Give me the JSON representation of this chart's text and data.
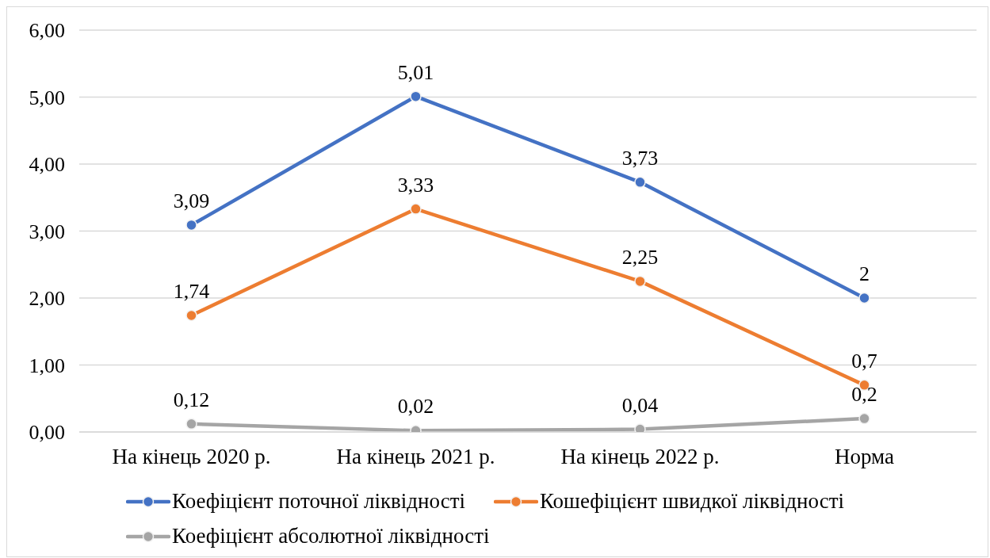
{
  "chart_data": {
    "type": "line",
    "categories": [
      "На кінець 2020 р.",
      "На кінець 2021 р.",
      "На кінець 2022 р.",
      "Норма"
    ],
    "series": [
      {
        "name": "Коефіцієнт поточної ліквідності",
        "color": "#4472c4",
        "values": [
          3.09,
          5.01,
          3.73,
          2
        ],
        "value_labels": [
          "3,09",
          "5,01",
          "3,73",
          "2"
        ]
      },
      {
        "name": "Кошефіцієнт швидкої ліквідності",
        "color": "#ed7d31",
        "values": [
          1.74,
          3.33,
          2.25,
          0.7
        ],
        "value_labels": [
          "1,74",
          "3,33",
          "2,25",
          "0,7"
        ]
      },
      {
        "name": "Коефіцієнт абсолютної ліквідності",
        "color": "#a5a5a5",
        "values": [
          0.12,
          0.02,
          0.04,
          0.2
        ],
        "value_labels": [
          "0,12",
          "0,02",
          "0,04",
          "0,2"
        ]
      }
    ],
    "ylim": [
      0,
      6
    ],
    "yticks": [
      {
        "value": 0,
        "label": "0,00"
      },
      {
        "value": 1,
        "label": "1,00"
      },
      {
        "value": 2,
        "label": "2,00"
      },
      {
        "value": 3,
        "label": "3,00"
      },
      {
        "value": 4,
        "label": "4,00"
      },
      {
        "value": 5,
        "label": "5,00"
      },
      {
        "value": 6,
        "label": "6,00"
      }
    ],
    "grid": "y",
    "legend": "bottom",
    "marker": "circle",
    "line_style": "solid"
  }
}
